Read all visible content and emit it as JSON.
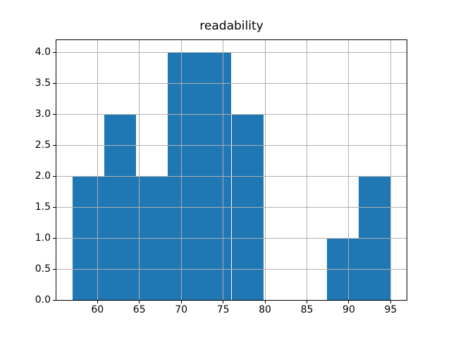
{
  "chart_data": {
    "type": "bar",
    "subtype": "histogram",
    "title": "readability",
    "xlabel": "",
    "ylabel": "",
    "bin_edges": [
      57.0,
      60.8,
      64.6,
      68.4,
      72.2,
      76.0,
      79.8,
      83.6,
      87.4,
      91.2,
      95.0
    ],
    "counts": [
      2,
      3,
      2,
      4,
      4,
      3,
      0,
      0,
      1,
      2
    ],
    "xlim": [
      55.1,
      96.9
    ],
    "ylim": [
      0,
      4.2
    ],
    "x_ticks": {
      "values": [
        60,
        65,
        70,
        75,
        80,
        85,
        90,
        95
      ],
      "labels": [
        "60",
        "65",
        "70",
        "75",
        "80",
        "85",
        "90",
        "95"
      ]
    },
    "y_ticks": {
      "values": [
        0,
        0.5,
        1,
        1.5,
        2,
        2.5,
        3,
        3.5,
        4
      ],
      "labels": [
        "0.0",
        "0.5",
        "1.0",
        "1.5",
        "2.0",
        "2.5",
        "3.0",
        "3.5",
        "4.0"
      ]
    },
    "grid": true,
    "grid_above_bars": true,
    "legend": "none",
    "colors": {
      "bar": "#1f77b4",
      "grid": "#b0b0b0",
      "axis": "#000000",
      "text": "#000000",
      "background": "#ffffff"
    }
  }
}
